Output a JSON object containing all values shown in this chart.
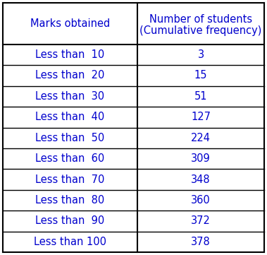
{
  "col1_header": "Marks obtained",
  "col2_header_line1": "Number of students",
  "col2_header_line2": "(Cumulative frequency)",
  "rows": [
    [
      "Less than  10",
      "3"
    ],
    [
      "Less than  20",
      "15"
    ],
    [
      "Less than  30",
      "51"
    ],
    [
      "Less than  40",
      "127"
    ],
    [
      "Less than  50",
      "224"
    ],
    [
      "Less than  60",
      "309"
    ],
    [
      "Less than  70",
      "348"
    ],
    [
      "Less than  80",
      "360"
    ],
    [
      "Less than  90",
      "372"
    ],
    [
      "Less than 100",
      "378"
    ]
  ],
  "bg_color": "#ffffff",
  "border_color": "#000000",
  "text_color": "#0000cd",
  "header_fontsize": 10.5,
  "cell_fontsize": 10.5,
  "fig_width": 3.79,
  "fig_height": 3.61,
  "dpi": 100
}
